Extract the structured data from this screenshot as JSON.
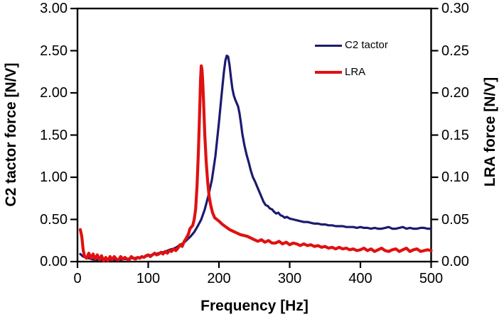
{
  "chart_data": {
    "type": "line",
    "title": "",
    "xlabel": "Frequency [Hz]",
    "ylabel_left": "C2 tactor force [N/V]",
    "ylabel_right": "LRA force [N/V]",
    "x_range": [
      0,
      500
    ],
    "x_ticks": [
      "0",
      "100",
      "200",
      "300",
      "400",
      "500"
    ],
    "y_left_range": [
      0,
      3
    ],
    "y_left_ticks": [
      "0.00",
      "0.50",
      "1.00",
      "1.50",
      "2.00",
      "2.50",
      "3.00"
    ],
    "y_right_range": [
      0,
      0.3
    ],
    "y_right_ticks": [
      "0.00",
      "0.05",
      "0.10",
      "0.15",
      "0.20",
      "0.25",
      "0.30"
    ],
    "grid": false,
    "legend_position": "inside-upper-right",
    "axis_color": "#000000",
    "series": [
      {
        "name": "C2 tactor",
        "color": "#1b1b70",
        "axis": "left",
        "peak_hz": 211,
        "peak_value": 2.44,
        "points": [
          [
            4,
            0.09
          ],
          [
            8,
            0.06
          ],
          [
            12,
            0.05
          ],
          [
            16,
            0.04
          ],
          [
            20,
            0.03
          ],
          [
            25,
            0.02
          ],
          [
            30,
            0.02
          ],
          [
            35,
            0.02
          ],
          [
            40,
            0.02
          ],
          [
            45,
            0.02
          ],
          [
            50,
            0.02
          ],
          [
            55,
            0.02
          ],
          [
            60,
            0.02
          ],
          [
            65,
            0.03
          ],
          [
            70,
            0.03
          ],
          [
            75,
            0.04
          ],
          [
            80,
            0.04
          ],
          [
            85,
            0.05
          ],
          [
            90,
            0.05
          ],
          [
            95,
            0.06
          ],
          [
            100,
            0.07
          ],
          [
            105,
            0.08
          ],
          [
            110,
            0.09
          ],
          [
            115,
            0.1
          ],
          [
            120,
            0.11
          ],
          [
            125,
            0.12
          ],
          [
            130,
            0.14
          ],
          [
            135,
            0.15
          ],
          [
            140,
            0.17
          ],
          [
            145,
            0.2
          ],
          [
            150,
            0.22
          ],
          [
            155,
            0.26
          ],
          [
            160,
            0.3
          ],
          [
            165,
            0.35
          ],
          [
            170,
            0.42
          ],
          [
            175,
            0.5
          ],
          [
            180,
            0.62
          ],
          [
            185,
            0.78
          ],
          [
            190,
            0.97
          ],
          [
            195,
            1.25
          ],
          [
            200,
            1.65
          ],
          [
            204,
            2.0
          ],
          [
            207,
            2.25
          ],
          [
            209,
            2.38
          ],
          [
            211,
            2.44
          ],
          [
            213,
            2.43
          ],
          [
            215,
            2.33
          ],
          [
            217,
            2.18
          ],
          [
            219,
            2.05
          ],
          [
            221,
            1.97
          ],
          [
            223,
            1.92
          ],
          [
            225,
            1.88
          ],
          [
            227,
            1.84
          ],
          [
            229,
            1.76
          ],
          [
            231,
            1.65
          ],
          [
            233,
            1.52
          ],
          [
            236,
            1.38
          ],
          [
            239,
            1.27
          ],
          [
            242,
            1.18
          ],
          [
            245,
            1.08
          ],
          [
            248,
            1.0
          ],
          [
            251,
            0.95
          ],
          [
            254,
            0.89
          ],
          [
            257,
            0.83
          ],
          [
            260,
            0.77
          ],
          [
            263,
            0.71
          ],
          [
            266,
            0.67
          ],
          [
            269,
            0.66
          ],
          [
            272,
            0.63
          ],
          [
            275,
            0.62
          ],
          [
            278,
            0.59
          ],
          [
            281,
            0.57
          ],
          [
            284,
            0.58
          ],
          [
            287,
            0.55
          ],
          [
            290,
            0.54
          ],
          [
            293,
            0.52
          ],
          [
            296,
            0.53
          ],
          [
            300,
            0.51
          ],
          [
            305,
            0.5
          ],
          [
            310,
            0.49
          ],
          [
            315,
            0.48
          ],
          [
            320,
            0.47
          ],
          [
            325,
            0.47
          ],
          [
            330,
            0.46
          ],
          [
            335,
            0.45
          ],
          [
            340,
            0.45
          ],
          [
            345,
            0.44
          ],
          [
            350,
            0.44
          ],
          [
            355,
            0.43
          ],
          [
            360,
            0.43
          ],
          [
            365,
            0.42
          ],
          [
            370,
            0.42
          ],
          [
            375,
            0.42
          ],
          [
            380,
            0.41
          ],
          [
            385,
            0.41
          ],
          [
            390,
            0.41
          ],
          [
            395,
            0.4
          ],
          [
            400,
            0.41
          ],
          [
            405,
            0.4
          ],
          [
            410,
            0.4
          ],
          [
            415,
            0.39
          ],
          [
            420,
            0.4
          ],
          [
            425,
            0.39
          ],
          [
            430,
            0.39
          ],
          [
            435,
            0.4
          ],
          [
            440,
            0.41
          ],
          [
            445,
            0.39
          ],
          [
            450,
            0.39
          ],
          [
            455,
            0.4
          ],
          [
            460,
            0.41
          ],
          [
            465,
            0.39
          ],
          [
            470,
            0.4
          ],
          [
            475,
            0.39
          ],
          [
            480,
            0.39
          ],
          [
            485,
            0.4
          ],
          [
            490,
            0.4
          ],
          [
            495,
            0.39
          ],
          [
            500,
            0.39
          ]
        ]
      },
      {
        "name": "LRA",
        "color": "#e01111",
        "axis": "right",
        "peak_hz": 175,
        "peak_value": 0.232,
        "points": [
          [
            4,
            0.038
          ],
          [
            6,
            0.03
          ],
          [
            8,
            0.014
          ],
          [
            10,
            0.006
          ],
          [
            13,
            0.004
          ],
          [
            16,
            0.01
          ],
          [
            19,
            0.004
          ],
          [
            22,
            0.009
          ],
          [
            25,
            0.003
          ],
          [
            28,
            0.008
          ],
          [
            31,
            0.002
          ],
          [
            34,
            0.007
          ],
          [
            37,
            0.001
          ],
          [
            40,
            0.005
          ],
          [
            43,
            0.001
          ],
          [
            46,
            0.006
          ],
          [
            49,
            0.002
          ],
          [
            52,
            0.006
          ],
          [
            55,
            0.003
          ],
          [
            58,
            0.002
          ],
          [
            61,
            0.006
          ],
          [
            64,
            0.003
          ],
          [
            67,
            0.005
          ],
          [
            70,
            0.003
          ],
          [
            73,
            0.002
          ],
          [
            76,
            0.006
          ],
          [
            79,
            0.004
          ],
          [
            82,
            0.003
          ],
          [
            85,
            0.005
          ],
          [
            88,
            0.004
          ],
          [
            91,
            0.006
          ],
          [
            94,
            0.005
          ],
          [
            97,
            0.007
          ],
          [
            100,
            0.008
          ],
          [
            103,
            0.006
          ],
          [
            106,
            0.008
          ],
          [
            109,
            0.01
          ],
          [
            112,
            0.008
          ],
          [
            115,
            0.009
          ],
          [
            118,
            0.011
          ],
          [
            121,
            0.009
          ],
          [
            124,
            0.012
          ],
          [
            127,
            0.01
          ],
          [
            130,
            0.013
          ],
          [
            133,
            0.012
          ],
          [
            136,
            0.015
          ],
          [
            139,
            0.013
          ],
          [
            142,
            0.016
          ],
          [
            145,
            0.02
          ],
          [
            148,
            0.018
          ],
          [
            151,
            0.024
          ],
          [
            154,
            0.028
          ],
          [
            157,
            0.033
          ],
          [
            159,
            0.039
          ],
          [
            161,
            0.041
          ],
          [
            163,
            0.043
          ],
          [
            165,
            0.05
          ],
          [
            167,
            0.062
          ],
          [
            169,
            0.09
          ],
          [
            171,
            0.13
          ],
          [
            173,
            0.185
          ],
          [
            174,
            0.215
          ],
          [
            175,
            0.232
          ],
          [
            176,
            0.228
          ],
          [
            177,
            0.215
          ],
          [
            178,
            0.195
          ],
          [
            180,
            0.15
          ],
          [
            182,
            0.118
          ],
          [
            184,
            0.095
          ],
          [
            186,
            0.078
          ],
          [
            188,
            0.068
          ],
          [
            191,
            0.058
          ],
          [
            194,
            0.052
          ],
          [
            197,
            0.05
          ],
          [
            200,
            0.048
          ],
          [
            205,
            0.044
          ],
          [
            210,
            0.041
          ],
          [
            215,
            0.038
          ],
          [
            220,
            0.036
          ],
          [
            225,
            0.034
          ],
          [
            230,
            0.032
          ],
          [
            235,
            0.031
          ],
          [
            240,
            0.03
          ],
          [
            245,
            0.028
          ],
          [
            250,
            0.026
          ],
          [
            255,
            0.024
          ],
          [
            260,
            0.026
          ],
          [
            265,
            0.023
          ],
          [
            270,
            0.025
          ],
          [
            275,
            0.022
          ],
          [
            280,
            0.022
          ],
          [
            285,
            0.024
          ],
          [
            290,
            0.021
          ],
          [
            295,
            0.023
          ],
          [
            300,
            0.02
          ],
          [
            305,
            0.022
          ],
          [
            310,
            0.021
          ],
          [
            315,
            0.019
          ],
          [
            320,
            0.021
          ],
          [
            325,
            0.019
          ],
          [
            330,
            0.02
          ],
          [
            335,
            0.018
          ],
          [
            340,
            0.019
          ],
          [
            345,
            0.017
          ],
          [
            350,
            0.018
          ],
          [
            355,
            0.016
          ],
          [
            360,
            0.017
          ],
          [
            365,
            0.015
          ],
          [
            370,
            0.017
          ],
          [
            375,
            0.015
          ],
          [
            380,
            0.016
          ],
          [
            385,
            0.014
          ],
          [
            390,
            0.015
          ],
          [
            395,
            0.013
          ],
          [
            400,
            0.014
          ],
          [
            405,
            0.016
          ],
          [
            410,
            0.013
          ],
          [
            415,
            0.015
          ],
          [
            420,
            0.012
          ],
          [
            425,
            0.014
          ],
          [
            430,
            0.016
          ],
          [
            435,
            0.013
          ],
          [
            440,
            0.012
          ],
          [
            445,
            0.014
          ],
          [
            450,
            0.015
          ],
          [
            455,
            0.012
          ],
          [
            460,
            0.014
          ],
          [
            465,
            0.016
          ],
          [
            470,
            0.012
          ],
          [
            475,
            0.014
          ],
          [
            480,
            0.015
          ],
          [
            485,
            0.012
          ],
          [
            490,
            0.013
          ],
          [
            495,
            0.014
          ],
          [
            500,
            0.013
          ]
        ]
      }
    ]
  }
}
